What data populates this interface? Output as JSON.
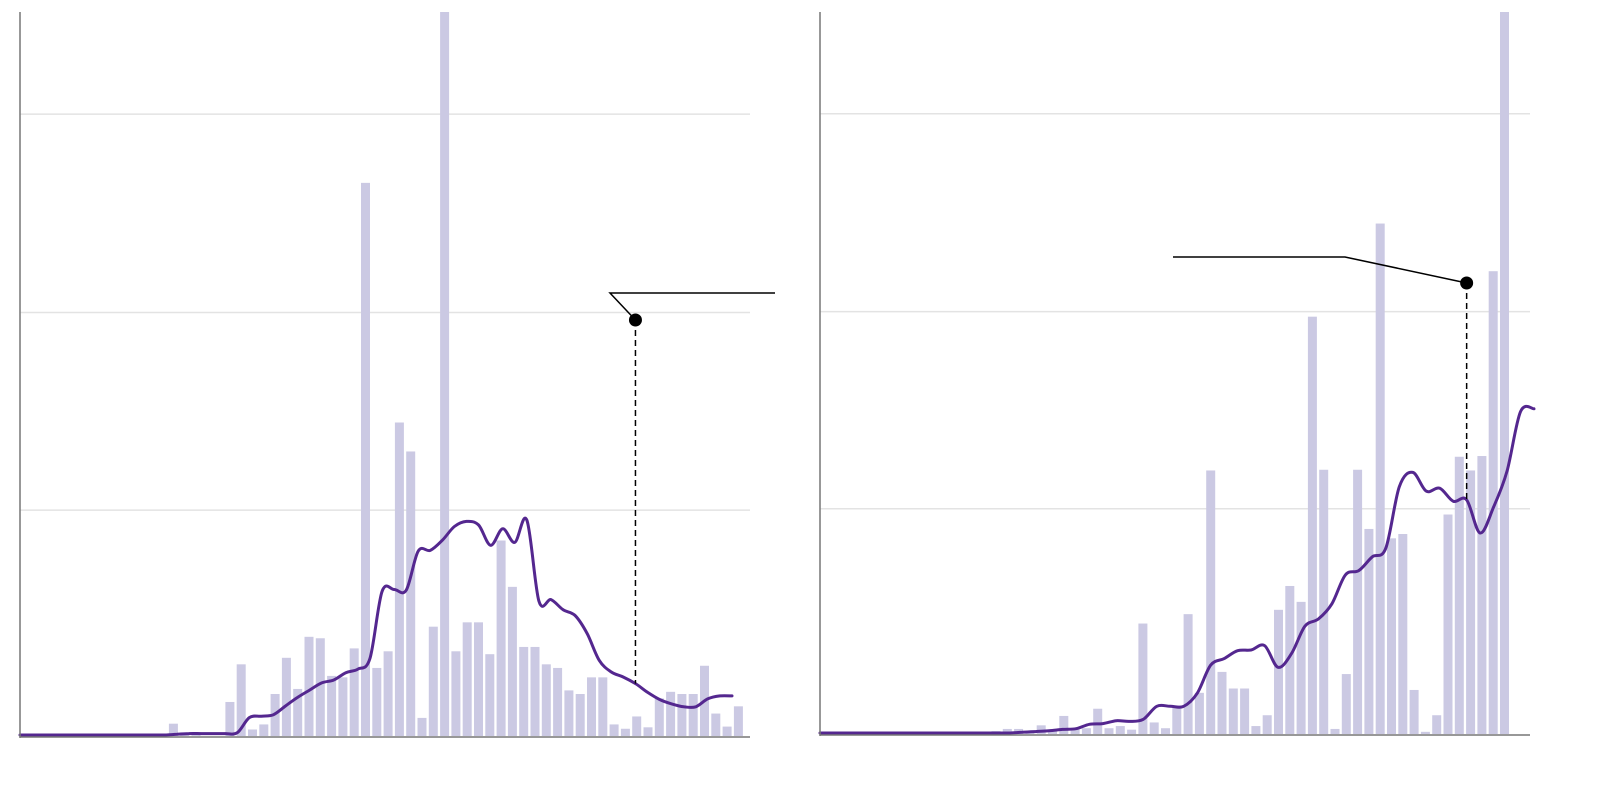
{
  "colors": {
    "bar": "#cbc9e3",
    "line": "#54278f",
    "grid": "#e3e3e3",
    "axis": "#777777",
    "annotation": "#000000"
  },
  "chart_data": [
    {
      "type": "bar",
      "overlay": "line",
      "title": "",
      "xlabel": "",
      "ylabel": "",
      "ylim": [
        0,
        1.0
      ],
      "grid": true,
      "legend": "none",
      "y_gridlines": [
        0.312,
        0.585,
        0.859
      ],
      "bars": [
        0,
        0,
        0,
        0,
        0,
        0,
        0,
        0,
        0,
        0,
        0,
        0,
        0,
        0.017,
        0.005,
        0.002,
        0,
        0,
        0.047,
        0.099,
        0.009,
        0.016,
        0.058,
        0.108,
        0.065,
        0.137,
        0.135,
        0.083,
        0.081,
        0.121,
        0.764,
        0.094,
        0.117,
        0.433,
        0.393,
        0.025,
        0.151,
        1.0,
        0.117,
        0.157,
        0.157,
        0.113,
        0.27,
        0.206,
        0.123,
        0.123,
        0.099,
        0.094,
        0.063,
        0.058,
        0.081,
        0.081,
        0.016,
        0.01,
        0.027,
        0.012,
        0.052,
        0.061,
        0.058,
        0.058,
        0.097,
        0.031,
        0.013,
        0.041
      ],
      "line": [
        0,
        0,
        0,
        0,
        0,
        0,
        0,
        0,
        0,
        0,
        0,
        0,
        0,
        0.001,
        0.002,
        0.002,
        0.002,
        0.002,
        0.003,
        0.024,
        0.026,
        0.028,
        0.04,
        0.052,
        0.062,
        0.072,
        0.076,
        0.086,
        0.091,
        0.106,
        0.198,
        0.201,
        0.2,
        0.254,
        0.255,
        0.269,
        0.288,
        0.295,
        0.29,
        0.262,
        0.285,
        0.266,
        0.297,
        0.185,
        0.187,
        0.173,
        0.165,
        0.14,
        0.103,
        0.087,
        0.08,
        0.071,
        0.059,
        0.049,
        0.043,
        0.039,
        0.039,
        0.05,
        0.054,
        0.054
      ],
      "annotation": {
        "label": "",
        "point_index": 51
      }
    },
    {
      "type": "bar",
      "overlay": "line",
      "title": "",
      "xlabel": "",
      "ylabel": "",
      "ylim": [
        0,
        1.0
      ],
      "grid": true,
      "legend": "none",
      "y_gridlines": [
        0.312,
        0.585,
        0.859
      ],
      "bars": [
        0,
        0,
        0,
        0,
        0,
        0,
        0,
        0,
        0,
        0,
        0,
        0,
        0,
        0,
        0,
        0.004,
        0.007,
        0.007,
        0.004,
        0.012,
        0.004,
        0.025,
        0.008,
        0.008,
        0.035,
        0.008,
        0.011,
        0.006,
        0.153,
        0.016,
        0.008,
        0.037,
        0.166,
        0.057,
        0.365,
        0.086,
        0.063,
        0.063,
        0.011,
        0.026,
        0.172,
        0.205,
        0.183,
        0.578,
        0.366,
        0.007,
        0.083,
        0.366,
        0.284,
        0.707,
        0.271,
        0.277,
        0.061,
        0.003,
        0.026,
        0.304,
        0.384,
        0.365,
        0.385,
        0.641,
        1.0
      ],
      "line": [
        0,
        0,
        0,
        0,
        0,
        0,
        0,
        0,
        0,
        0,
        0,
        0,
        0,
        0,
        0,
        0.001,
        0.002,
        0.003,
        0.005,
        0.006,
        0.012,
        0.013,
        0.017,
        0.016,
        0.019,
        0.037,
        0.037,
        0.037,
        0.055,
        0.094,
        0.103,
        0.114,
        0.115,
        0.121,
        0.091,
        0.11,
        0.148,
        0.158,
        0.179,
        0.219,
        0.225,
        0.244,
        0.256,
        0.341,
        0.361,
        0.335,
        0.339,
        0.321,
        0.323,
        0.277,
        0.313,
        0.363,
        0.445,
        0.449
      ],
      "annotation": {
        "label": "",
        "point_index": 48
      }
    }
  ]
}
